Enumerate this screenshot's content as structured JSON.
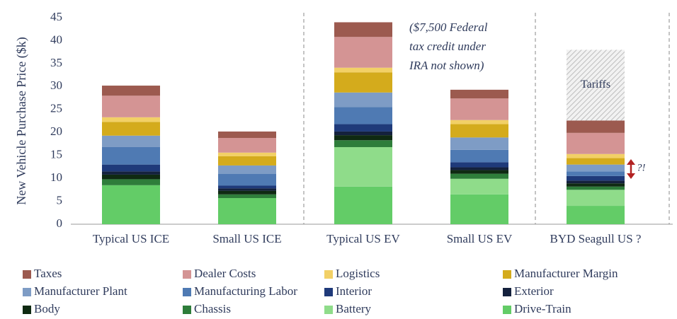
{
  "chart_data": {
    "type": "stacked_bar",
    "y_label": "New Vehicle Purchase Price ($k)",
    "categories": [
      "Typical US ICE",
      "Small US ICE",
      "Typical US EV",
      "Small US EV",
      "BYD Seagull US ?"
    ],
    "ylim": [
      0,
      45
    ],
    "yticks": [
      0,
      5,
      10,
      15,
      20,
      25,
      30,
      35,
      40,
      45
    ],
    "grid": false,
    "series": [
      {
        "name": "Drive-Train",
        "color": "#63cc67",
        "values": [
          8.5,
          5.7,
          8.2,
          6.5,
          4.0
        ]
      },
      {
        "name": "Battery",
        "color": "#8fdc8a",
        "values": [
          0,
          0,
          8.6,
          3.4,
          3.5
        ]
      },
      {
        "name": "Chassis",
        "color": "#2e7d3a",
        "values": [
          1.3,
          0.8,
          1.5,
          1.1,
          0.7
        ]
      },
      {
        "name": "Body",
        "color": "#0f2a12",
        "values": [
          1.0,
          0.8,
          1.1,
          0.8,
          0.7
        ]
      },
      {
        "name": "Exterior",
        "color": "#14213d",
        "values": [
          0.7,
          0.5,
          0.8,
          0.6,
          0.6
        ]
      },
      {
        "name": "Interior",
        "color": "#1f3a7a",
        "values": [
          1.5,
          0.6,
          1.6,
          1.1,
          1.0
        ]
      },
      {
        "name": "Manufacturing Labor",
        "color": "#4f7ab3",
        "values": [
          3.8,
          2.6,
          3.7,
          2.7,
          1.0
        ]
      },
      {
        "name": "Manufacturer Plant",
        "color": "#7e9cc5",
        "values": [
          2.5,
          1.8,
          3.2,
          2.7,
          1.5
        ]
      },
      {
        "name": "Manufacturer Margin",
        "color": "#d4ab1c",
        "values": [
          3.0,
          2.0,
          4.4,
          2.9,
          1.4
        ]
      },
      {
        "name": "Logistics",
        "color": "#f2d066",
        "values": [
          1.0,
          0.8,
          1.0,
          0.9,
          0.9
        ]
      },
      {
        "name": "Dealer Costs",
        "color": "#d49494",
        "values": [
          4.7,
          3.2,
          6.7,
          4.7,
          4.6
        ]
      },
      {
        "name": "Taxes",
        "color": "#9c5a4f",
        "values": [
          2.2,
          1.4,
          3.2,
          1.9,
          2.7
        ]
      }
    ],
    "hatched_series": {
      "name": "Tariffs",
      "values": [
        null,
        null,
        null,
        null,
        15.4
      ]
    },
    "annotations": {
      "tax_credit_note": [
        "($7,500 Federal",
        "tax credit under",
        "IRA not shown)"
      ],
      "byd_note": "?!"
    }
  }
}
